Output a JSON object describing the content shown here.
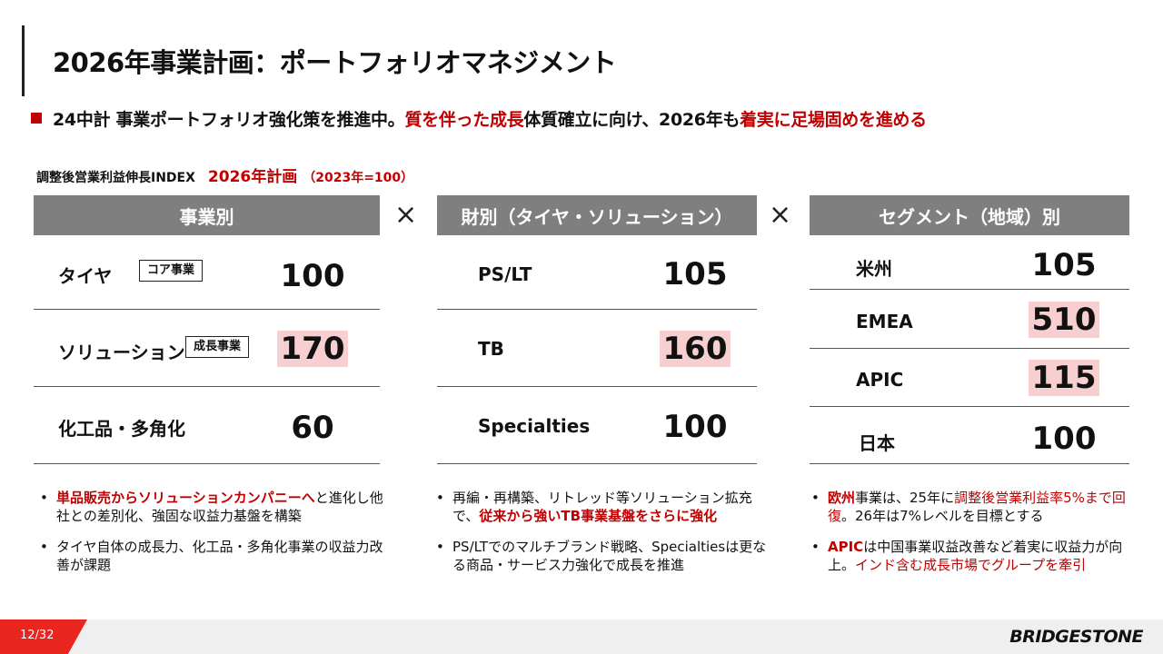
{
  "title": "2026年事業計画：ポートフォリオマネジメント",
  "lead": {
    "part1": "24中計 事業ポートフォリオ強化策を推進中。",
    "part2": "質を伴った成長",
    "part3": "体質確立に向け、2026年も",
    "part4": "着実に足場固めを進める"
  },
  "index": {
    "label": "調整後営業利益伸長INDEX",
    "plan": "2026年計画",
    "base": "（2023年=100）"
  },
  "multiply_symbol": "×",
  "colors": {
    "accent_red": "#c00000",
    "header_gray": "#7f7f7f",
    "highlight_pink": "#f8cfd0"
  },
  "by_business": {
    "header": "事業別",
    "rows": [
      {
        "label": "タイヤ",
        "tag": "コア事業",
        "value": "100"
      },
      {
        "label": "ソリューション",
        "tag": "成長事業",
        "value": "170"
      },
      {
        "label": "化工品・多角化",
        "tag": "",
        "value": "60"
      }
    ],
    "bullets": [
      {
        "red": "単品販売からソリューションカンパニーへ",
        "rest": "と進化し他社との差別化、強固な収益力基盤を構築"
      },
      {
        "red": "",
        "rest": "タイヤ自体の成長力、化工品・多角化事業の収益力改善が課題"
      }
    ]
  },
  "by_product": {
    "header": "財別（タイヤ・ソリューション）",
    "rows": [
      {
        "label": "PS/LT",
        "value": "105"
      },
      {
        "label": "TB",
        "value": "160"
      },
      {
        "label": "Specialties",
        "value": "100"
      }
    ],
    "bullets": [
      {
        "pre": "再編・再構築、リトレッド等ソリューション拡充で、",
        "red": "従来から強いTB事業基盤をさらに強化"
      },
      {
        "pre": "PS/LTでのマルチブランド戦略、Specialtiesは更なる商品・サービス力強化で成長を推進",
        "red": ""
      }
    ]
  },
  "by_segment": {
    "header": "セグメント（地域）別",
    "rows": [
      {
        "label": "米州",
        "value": "105"
      },
      {
        "label": "EMEA",
        "value": "510"
      },
      {
        "label": "APIC",
        "value": "115"
      },
      {
        "label": "日本",
        "value": "100"
      }
    ],
    "bullets": [
      {
        "a_red": "欧州",
        "b": "事業は、25年に",
        "c_red": "調整後営業利益率5%まで回復",
        "d": "。26年は7%レベルを目標とする"
      },
      {
        "a_red": "APIC",
        "b": "は中国事業収益改善など着実に収益力が向上。",
        "c_red": "インド含む成長市場でグループを牽引",
        "d": ""
      }
    ]
  },
  "footer": {
    "page": "12/32",
    "logo": "BRIDGESTONE"
  }
}
